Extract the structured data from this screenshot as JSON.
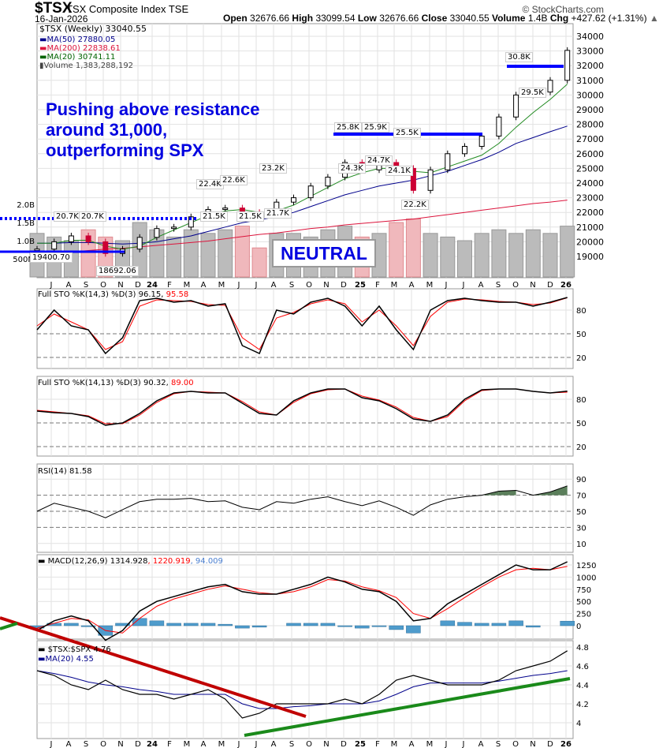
{
  "header": {
    "symbol": "$TSX",
    "name": "TSX Composite Index",
    "exchange": "TSE",
    "date": "16-Jan-2026",
    "open_label": "Open",
    "open": "32676.66",
    "high_label": "High",
    "high": "33099.54",
    "low_label": "Low",
    "low": "32676.66",
    "close_label": "Close",
    "close": "33040.55",
    "volume_label": "Volume",
    "volume": "1.4B",
    "chg_label": "Chg",
    "chg": "+427.62 (+1.31%)",
    "brand": "© StockCharts.com"
  },
  "legend": {
    "price": "$TSX (Weekly) 33040.55",
    "ma50": "MA(50) 27880.05",
    "ma200": "MA(200) 22838.61",
    "ma20": "MA(20) 30741.11",
    "volume": "Volume 1,383,288,192",
    "sto1_a": "Full STO %K(14,3) %D(3) 96.15,",
    "sto1_b": "95.58",
    "sto2_a": "Full STO %K(14,13) %D(3) 90.32,",
    "sto2_b": "89.00",
    "rsi": "RSI(14) 81.58",
    "macd_a": "MACD(12,26,9) 1314.928",
    "macd_b": ", 1220.919",
    "macd_c": ", 94.009",
    "ratio": "$TSX:$SPX 4.76",
    "ratio_ma": "MA(20) 4.55"
  },
  "annotations": {
    "note_lines": [
      "Pushing above resistance",
      "around 31,000,",
      "outperforming SPX"
    ],
    "neutral": "NEUTRAL",
    "tags": [
      "20.7K",
      "20.7K",
      "19400.70",
      "18692.06",
      "22.4K",
      "22.6K",
      "21.5K",
      "21.5K",
      "21.7K",
      "23.2K",
      "25.8K",
      "25.9K",
      "25.5K",
      "24.3K",
      "24.7K",
      "24.1K",
      "22.2K",
      "30.8K",
      "29.5K"
    ]
  },
  "colors": {
    "ma50": "#00008b",
    "ma200": "#dc143c",
    "ma20": "#228b22",
    "resistance": "#0000ff",
    "down": "#cc0033",
    "macd_signal": "#ff0000",
    "hist": "#4f9ccc",
    "downtrend": "#c00000",
    "uptrend": "#1a8a1a",
    "rsi_fill": "#5b7f5b"
  },
  "chart_data": [
    {
      "type": "candlestick",
      "title": "$TSX (Weekly)",
      "x": [
        "2023-06",
        "2023-07",
        "2023-08",
        "2023-09",
        "2023-10",
        "2023-11",
        "2023-12",
        "2024-01",
        "2024-02",
        "2024-03",
        "2024-04",
        "2024-05",
        "2024-06",
        "2024-07",
        "2024-08",
        "2024-09",
        "2024-10",
        "2024-11",
        "2024-12",
        "2025-01",
        "2025-02",
        "2025-03",
        "2025-04",
        "2025-05",
        "2025-06",
        "2025-07",
        "2025-08",
        "2025-09",
        "2025-10",
        "2025-11",
        "2025-12",
        "2026-01"
      ],
      "close": [
        19500,
        20000,
        20400,
        20000,
        19200,
        19500,
        20300,
        20900,
        21000,
        21700,
        22200,
        22300,
        22000,
        21800,
        22700,
        23000,
        23800,
        24400,
        25400,
        24900,
        25400,
        25000,
        23500,
        24900,
        26000,
        26500,
        27200,
        28500,
        30000,
        30200,
        31000,
        33040
      ],
      "ma50": [
        19900,
        19900,
        19950,
        19950,
        19900,
        19850,
        19900,
        20000,
        20200,
        20400,
        20700,
        21000,
        21300,
        21500,
        21700,
        22000,
        22400,
        22800,
        23200,
        23500,
        23800,
        24000,
        24200,
        24500,
        24800,
        25200,
        25600,
        26100,
        26700,
        27100,
        27500,
        27880
      ],
      "ma200": [
        19100,
        19200,
        19300,
        19400,
        19500,
        19550,
        19650,
        19750,
        19850,
        19950,
        20050,
        20200,
        20350,
        20500,
        20600,
        20750,
        20900,
        21000,
        21150,
        21250,
        21350,
        21450,
        21550,
        21700,
        21850,
        22000,
        22150,
        22300,
        22450,
        22600,
        22700,
        22840
      ],
      "ma20": [
        19900,
        19900,
        20100,
        20100,
        19700,
        19500,
        19700,
        20300,
        20800,
        21300,
        21800,
        22100,
        22200,
        22000,
        22100,
        22500,
        23100,
        23700,
        24300,
        24700,
        25000,
        25000,
        24800,
        24700,
        25100,
        25500,
        25900,
        26700,
        27800,
        28800,
        29700,
        30740
      ],
      "volume_b": [
        1.2,
        1.1,
        1.0,
        1.3,
        1.1,
        1.0,
        1.5,
        1.3,
        1.1,
        1.3,
        1.2,
        1.3,
        1.4,
        0.8,
        1.2,
        1.2,
        1.1,
        1.3,
        1.4,
        1.1,
        1.2,
        1.5,
        1.6,
        1.2,
        1.1,
        1.0,
        1.2,
        1.3,
        1.2,
        1.3,
        1.2,
        1.4
      ],
      "yticks": [
        19000,
        20000,
        21000,
        22000,
        23000,
        24000,
        25000,
        26000,
        27000,
        28000,
        29000,
        30000,
        31000,
        32000,
        33000,
        34000
      ],
      "volume_ticks": [
        "500M",
        "1.0B",
        "1.5B",
        "2.0B"
      ],
      "xticks": [
        "J",
        "A",
        "S",
        "O",
        "N",
        "D",
        "24",
        "F",
        "M",
        "A",
        "M",
        "J",
        "J",
        "A",
        "S",
        "O",
        "N",
        "D",
        "25",
        "F",
        "M",
        "A",
        "M",
        "J",
        "J",
        "A",
        "S",
        "O",
        "N",
        "D",
        "26"
      ]
    },
    {
      "type": "line",
      "title": "Full STO %K(14,3) %D(3)",
      "k": [
        55,
        80,
        60,
        55,
        25,
        45,
        92,
        95,
        90,
        92,
        85,
        88,
        35,
        25,
        80,
        75,
        90,
        95,
        85,
        60,
        85,
        55,
        30,
        80,
        92,
        95,
        92,
        90,
        90,
        85,
        90,
        96
      ],
      "d": [
        60,
        75,
        65,
        55,
        30,
        40,
        85,
        93,
        92,
        91,
        87,
        86,
        45,
        30,
        70,
        77,
        88,
        93,
        88,
        65,
        80,
        60,
        35,
        72,
        90,
        94,
        93,
        91,
        90,
        87,
        89,
        95.6
      ],
      "yticks": [
        20,
        50,
        80
      ]
    },
    {
      "type": "line",
      "title": "Full STO %K(14,13) %D(3)",
      "k": [
        65,
        63,
        62,
        58,
        47,
        50,
        62,
        78,
        88,
        90,
        88,
        88,
        75,
        62,
        60,
        78,
        88,
        93,
        93,
        82,
        78,
        68,
        55,
        52,
        60,
        80,
        92,
        93,
        93,
        90,
        88,
        90.3
      ],
      "d": [
        66,
        64,
        62,
        59,
        49,
        49,
        60,
        76,
        87,
        90,
        89,
        88,
        77,
        64,
        60,
        76,
        87,
        92,
        93,
        84,
        79,
        70,
        57,
        52,
        58,
        78,
        91,
        93,
        93,
        90,
        88,
        89
      ],
      "yticks": [
        20,
        50,
        80
      ]
    },
    {
      "type": "line",
      "title": "RSI(14)",
      "values": [
        50,
        60,
        55,
        50,
        42,
        52,
        62,
        65,
        65,
        66,
        62,
        63,
        55,
        52,
        62,
        60,
        65,
        68,
        62,
        57,
        63,
        55,
        45,
        58,
        65,
        68,
        70,
        75,
        76,
        70,
        74,
        81.58
      ],
      "yticks": [
        10,
        30,
        50,
        70,
        90
      ]
    },
    {
      "type": "line",
      "title": "MACD(12,26,9)",
      "macd": [
        -100,
        100,
        200,
        100,
        -300,
        -100,
        300,
        500,
        600,
        700,
        800,
        850,
        700,
        650,
        650,
        750,
        850,
        1000,
        900,
        750,
        700,
        500,
        100,
        150,
        450,
        650,
        850,
        1050,
        1250,
        1150,
        1150,
        1315
      ],
      "signal": [
        -50,
        50,
        150,
        120,
        -100,
        -150,
        150,
        400,
        550,
        650,
        750,
        820,
        750,
        680,
        650,
        700,
        800,
        950,
        920,
        800,
        720,
        580,
        250,
        150,
        350,
        580,
        800,
        1000,
        1150,
        1180,
        1150,
        1221
      ],
      "yticks": [
        0,
        250,
        500,
        750,
        1000,
        1250
      ]
    },
    {
      "type": "line",
      "title": "$TSX:$SPX",
      "values": [
        4.55,
        4.5,
        4.4,
        4.35,
        4.45,
        4.35,
        4.3,
        4.3,
        4.25,
        4.3,
        4.35,
        4.25,
        4.05,
        4.1,
        4.2,
        4.2,
        4.2,
        4.2,
        4.25,
        4.2,
        4.3,
        4.45,
        4.5,
        4.45,
        4.4,
        4.4,
        4.4,
        4.45,
        4.55,
        4.6,
        4.65,
        4.76
      ],
      "ma20": [
        4.55,
        4.52,
        4.48,
        4.43,
        4.4,
        4.38,
        4.35,
        4.33,
        4.3,
        4.3,
        4.3,
        4.3,
        4.2,
        4.15,
        4.15,
        4.17,
        4.18,
        4.2,
        4.2,
        4.2,
        4.23,
        4.3,
        4.38,
        4.42,
        4.42,
        4.42,
        4.42,
        4.44,
        4.47,
        4.5,
        4.52,
        4.55
      ],
      "yticks": [
        4.0,
        4.2,
        4.4,
        4.6,
        4.8
      ]
    }
  ]
}
